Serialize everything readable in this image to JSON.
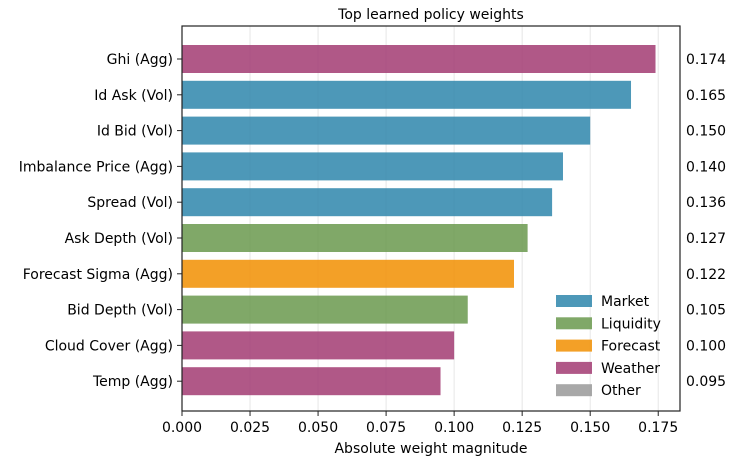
{
  "chart_data": {
    "type": "bar",
    "orientation": "horizontal",
    "title": "Top learned policy weights",
    "xlabel": "Absolute weight magnitude",
    "ylabel": "",
    "xlim": [
      0.0,
      0.183
    ],
    "xticks": [
      "0.000",
      "0.025",
      "0.050",
      "0.075",
      "0.100",
      "0.125",
      "0.150",
      "0.175"
    ],
    "grid": "vertical",
    "legend_position": "lower-right",
    "categories": [
      "Ghi (Agg)",
      "Id Ask (Vol)",
      "Id Bid (Vol)",
      "Imbalance Price (Agg)",
      "Spread (Vol)",
      "Ask Depth (Vol)",
      "Forecast Sigma (Agg)",
      "Bid Depth (Vol)",
      "Cloud Cover (Agg)",
      "Temp (Agg)"
    ],
    "values": [
      0.174,
      0.165,
      0.15,
      0.14,
      0.136,
      0.127,
      0.122,
      0.105,
      0.1,
      0.095
    ],
    "value_labels": [
      "0.174",
      "0.165",
      "0.150",
      "0.140",
      "0.136",
      "0.127",
      "0.122",
      "0.105",
      "0.100",
      "0.095"
    ],
    "groups": [
      "Weather",
      "Market",
      "Market",
      "Market",
      "Market",
      "Liquidity",
      "Forecast",
      "Liquidity",
      "Weather",
      "Weather"
    ],
    "legend": [
      {
        "label": "Market",
        "color": "#2E86AB"
      },
      {
        "label": "Liquidity",
        "color": "#6A994E"
      },
      {
        "label": "Forecast",
        "color": "#F18F01"
      },
      {
        "label": "Weather",
        "color": "#A23B72"
      },
      {
        "label": "Other",
        "color": "#999999"
      }
    ]
  }
}
